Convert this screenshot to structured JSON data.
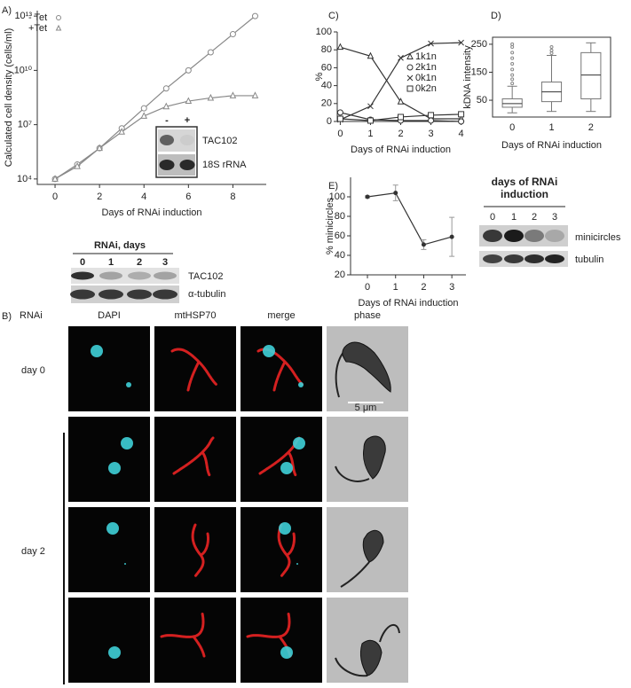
{
  "chart_data": [
    {
      "type": "line",
      "label": "A)",
      "ylabel": "Calculated cell density (cells/ml)",
      "xlabel": "Days of RNAi induction",
      "ylog": true,
      "x": [
        0,
        1,
        2,
        3,
        4,
        5,
        6,
        7,
        8,
        9
      ],
      "xlim": [
        -0.8,
        9.5
      ],
      "xticks": [
        0,
        2,
        4,
        6,
        8
      ],
      "ylim": [
        5000,
        20000000000000
      ],
      "yticks": [
        {
          "value": 10000,
          "label": "10⁴"
        },
        {
          "value": 10000000,
          "label": "10⁷"
        },
        {
          "value": 10000000000,
          "label": "10¹⁰"
        },
        {
          "value": 10000000000000,
          "label": "10¹³"
        }
      ],
      "series": [
        {
          "name": "- Tet",
          "color": "#888888",
          "marker": "circle",
          "values": [
            10000,
            63000,
            500000,
            6300000,
            80000000,
            1000000000,
            10000000000,
            100000000000,
            1000000000000,
            10000000000000
          ]
        },
        {
          "name": "+Tet",
          "color": "#888888",
          "marker": "triangle",
          "values": [
            10000,
            50000,
            500000,
            4000000,
            30000000,
            100000000,
            200000000,
            300000000,
            400000000,
            400000000
          ]
        }
      ]
    },
    {
      "type": "line",
      "label": "C)",
      "ylabel": "%",
      "xlabel": "Days of RNAi induction",
      "x": [
        0,
        1,
        2,
        3,
        4
      ],
      "xlim": [
        -0.1,
        4.1
      ],
      "xticks": [
        0,
        1,
        2,
        3,
        4
      ],
      "ylim": [
        0,
        100
      ],
      "yticks": [
        0,
        20,
        40,
        60,
        80,
        100
      ],
      "series": [
        {
          "name": "1k1n",
          "color": "#333333",
          "marker": "triangle",
          "values": [
            83,
            73,
            22,
            3,
            3
          ]
        },
        {
          "name": "2k1n",
          "color": "#333333",
          "marker": "circle",
          "values": [
            10,
            2,
            1,
            1,
            0
          ]
        },
        {
          "name": "0k1n",
          "color": "#333333",
          "marker": "x",
          "values": [
            2,
            17,
            71,
            87,
            88
          ]
        },
        {
          "name": "0k2n",
          "color": "#333333",
          "marker": "square",
          "values": [
            3,
            1,
            5,
            7,
            8
          ]
        }
      ]
    },
    {
      "type": "box",
      "label": "D)",
      "ylabel": "kDNA intensity",
      "xlabel": "Days of RNAi induction",
      "categories": [
        "0",
        "1",
        "2"
      ],
      "ylim": [
        -10,
        275
      ],
      "yticks": [
        50,
        150,
        250
      ],
      "color": "#777777",
      "boxes": [
        {
          "whisker_low": 5,
          "q1": 25,
          "median": 38,
          "q3": 55,
          "whisker_high": 100,
          "outliers": [
            110,
            125,
            140,
            160,
            180,
            200,
            220,
            240,
            250
          ]
        },
        {
          "whisker_low": 10,
          "q1": 45,
          "median": 80,
          "q3": 115,
          "whisker_high": 210,
          "outliers": [
            218,
            228,
            240
          ]
        },
        {
          "whisker_low": 10,
          "q1": 55,
          "median": 140,
          "q3": 220,
          "whisker_high": 255,
          "outliers": []
        }
      ]
    },
    {
      "type": "line",
      "label": "E)",
      "ylabel": "% minicircles",
      "xlabel": "Days of RNAi induction",
      "x": [
        0,
        1,
        2,
        3
      ],
      "xlim": [
        -0.6,
        3.5
      ],
      "xticks": [
        0,
        1,
        2,
        3
      ],
      "ylim": [
        20,
        120
      ],
      "yticks": [
        20,
        40,
        60,
        80,
        100
      ],
      "series": [
        {
          "name": "minicircles",
          "color": "#333333",
          "marker": "dot",
          "values": [
            100,
            104,
            51,
            59
          ],
          "errors": [
            1,
            8,
            5,
            20
          ]
        }
      ]
    }
  ],
  "blot_a": {
    "lanes": [
      "-",
      "+"
    ],
    "bands": [
      "TAC102",
      "18S rRNA"
    ]
  },
  "blot_a2": {
    "title": "RNAi, days",
    "lanes": [
      "0",
      "1",
      "2",
      "3"
    ],
    "bands": [
      "TAC102",
      "α-tubulin"
    ]
  },
  "blot_e": {
    "title": "days of RNAi induction",
    "lanes": [
      "0",
      "1",
      "2",
      "3"
    ],
    "bands": [
      "minicircles",
      "tubulin"
    ]
  },
  "panel_b": {
    "label": "B)",
    "row_header": "RNAi",
    "columns": [
      "DAPI",
      "mtHSP70",
      "merge",
      "phase"
    ],
    "rows": [
      "day 0",
      "day 2"
    ],
    "scale_bar": "5 μm"
  }
}
